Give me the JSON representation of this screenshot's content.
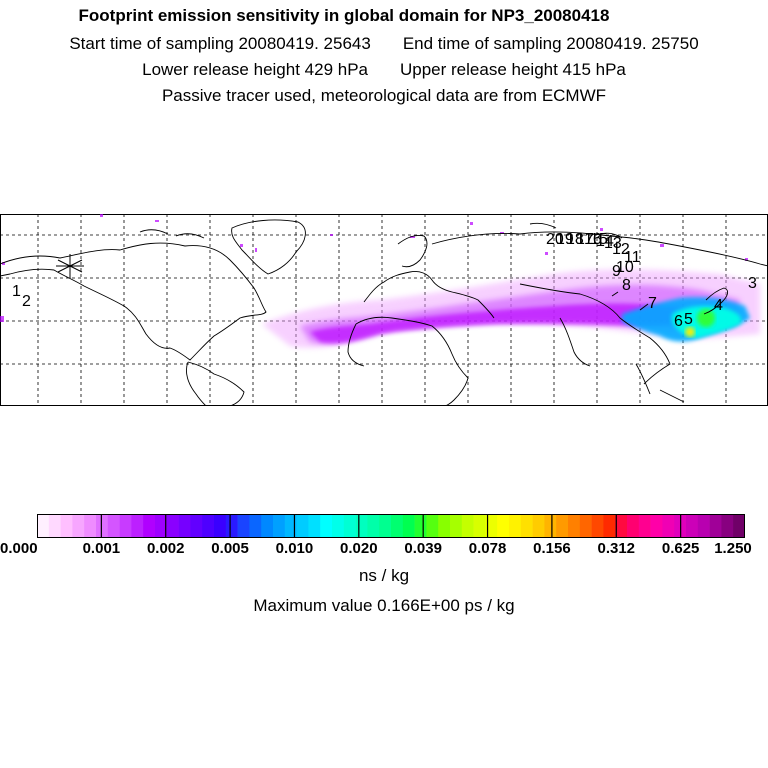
{
  "header": {
    "title": "Footprint emission sensitivity in global domain for NP3_20080418",
    "start_label": "Start time of sampling 20080419. 25643",
    "end_label": "End time of sampling 20080419. 25750",
    "lower_label": "Lower release height  429 hPa",
    "upper_label": "Upper release height  415 hPa",
    "note": "Passive tracer used, meteorological data are from ECMWF"
  },
  "map": {
    "trajectory_labels": [
      "1",
      "2",
      "3",
      "4",
      "5",
      "6",
      "7",
      "8",
      "9",
      "10",
      "11",
      "12",
      "13",
      "14",
      "15",
      "16",
      "17",
      "18",
      "19",
      "20"
    ],
    "plume_colors": [
      "#b800ff",
      "#cc55ff",
      "#ee99ff",
      "#8a00ff",
      "#00aaff",
      "#00ffe6",
      "#33ff33",
      "#ffee00"
    ]
  },
  "colorbar": {
    "tick_labels": [
      "0.000",
      "0.001",
      "0.002",
      "0.005",
      "0.010",
      "0.020",
      "0.039",
      "0.078",
      "0.156",
      "0.312",
      "0.625",
      "1.250"
    ],
    "colors": [
      "#fff0ff",
      "#ffd9ff",
      "#ffbfff",
      "#f7a6ff",
      "#ef8cff",
      "#e070ff",
      "#d455ff",
      "#c83bff",
      "#bc20ff",
      "#b000ff",
      "#9e00ff",
      "#8a00ff",
      "#7600ff",
      "#6200ff",
      "#4e00ff",
      "#3a00ff",
      "#2a1aff",
      "#1a44ff",
      "#0a66ff",
      "#0088ff",
      "#00a0ff",
      "#00b8ff",
      "#00ccff",
      "#00e0ff",
      "#00ffff",
      "#00ffea",
      "#00ffd4",
      "#00ffbf",
      "#00ffa9",
      "#00ff90",
      "#00ff70",
      "#00ff50",
      "#22ff30",
      "#55ff10",
      "#88ff00",
      "#a6ff00",
      "#c4ff00",
      "#d8ff00",
      "#ecff00",
      "#ffff00",
      "#fff200",
      "#ffe000",
      "#ffcc00",
      "#ffb400",
      "#ff9a00",
      "#ff8000",
      "#ff6600",
      "#ff4800",
      "#ff2a00",
      "#ff0a40",
      "#ff0070",
      "#ff0090",
      "#ff00a8",
      "#f000b4",
      "#e000bc",
      "#cc00b8",
      "#b800b0",
      "#a00098",
      "#880080",
      "#700068"
    ],
    "unit": "ns / kg",
    "max_label": "Maximum value  0.166E+00 ps / kg"
  }
}
